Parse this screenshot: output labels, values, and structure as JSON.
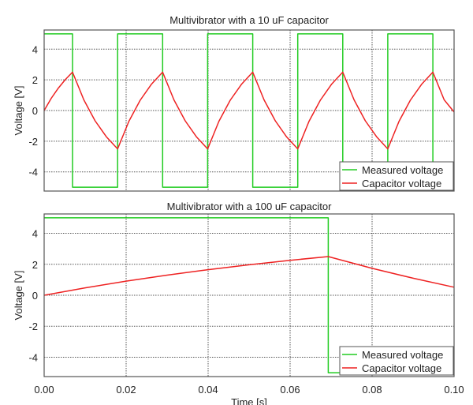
{
  "chart_data": [
    {
      "type": "line",
      "title": "Multivibrator with a 10 uF capacitor",
      "xlabel": "",
      "ylabel": "Voltage [V]",
      "xlim": [
        0,
        0.1
      ],
      "ylim": [
        -5.25,
        5.25
      ],
      "yticks": [
        4,
        2,
        0,
        -2,
        -4
      ],
      "ytick_labels": [
        "4",
        "2",
        "0",
        "-2",
        "-4"
      ],
      "xticks": [
        0,
        0.02,
        0.04,
        0.06,
        0.08,
        0.1
      ],
      "grid": true,
      "legend_position": "bottom-right",
      "series": [
        {
          "name": "Measured voltage",
          "color": "#22cc22",
          "x": [
            0,
            0.00693,
            0.00693,
            0.01792,
            0.01792,
            0.0289,
            0.0289,
            0.03989,
            0.03989,
            0.05088,
            0.05088,
            0.06186,
            0.06186,
            0.07285,
            0.07285,
            0.08383,
            0.08383,
            0.09482,
            0.09482,
            0.1
          ],
          "y": [
            5,
            5,
            -5,
            -5,
            5,
            5,
            -5,
            -5,
            5,
            5,
            -5,
            -5,
            5,
            5,
            -5,
            -5,
            5,
            5,
            -5,
            -5
          ]
        },
        {
          "name": "Capacitor voltage",
          "color": "#ee2222",
          "x": [
            0,
            0.00173,
            0.00347,
            0.0052,
            0.00693,
            0.00968,
            0.01243,
            0.01517,
            0.01792,
            0.02067,
            0.02342,
            0.02616,
            0.0289,
            0.03165,
            0.0344,
            0.03714,
            0.03989,
            0.04264,
            0.04539,
            0.04813,
            0.05088,
            0.05363,
            0.05638,
            0.05912,
            0.06186,
            0.06461,
            0.06736,
            0.0701,
            0.07285,
            0.0756,
            0.07835,
            0.08109,
            0.08383,
            0.08658,
            0.08933,
            0.09207,
            0.09482,
            0.09757,
            0.1
          ],
          "y": [
            0,
            0.8,
            1.46,
            2.03,
            2.5,
            0.7,
            -0.67,
            -1.71,
            -2.5,
            -0.7,
            0.67,
            1.71,
            2.5,
            0.7,
            -0.67,
            -1.71,
            -2.5,
            -0.7,
            0.67,
            1.71,
            2.5,
            0.7,
            -0.67,
            -1.71,
            -2.5,
            -0.7,
            0.67,
            1.71,
            2.5,
            0.7,
            -0.67,
            -1.71,
            -2.5,
            -0.7,
            0.67,
            1.71,
            2.5,
            0.7,
            -0.1
          ]
        }
      ]
    },
    {
      "type": "line",
      "title": "Multivibrator with a 100 uF capacitor",
      "xlabel": "Time [s]",
      "ylabel": "Voltage [V]",
      "xlim": [
        0,
        0.1
      ],
      "ylim": [
        -5.25,
        5.25
      ],
      "yticks": [
        4,
        2,
        0,
        -2,
        -4
      ],
      "ytick_labels": [
        "4",
        "2",
        "0",
        "-2",
        "-4"
      ],
      "xticks": [
        0,
        0.02,
        0.04,
        0.06,
        0.08,
        0.1
      ],
      "xtick_labels": [
        "0.00",
        "0.02",
        "0.04",
        "0.06",
        "0.08",
        "0.10"
      ],
      "grid": true,
      "legend_position": "bottom-right",
      "series": [
        {
          "name": "Measured voltage",
          "color": "#22cc22",
          "x": [
            0,
            0.0693,
            0.0693,
            0.1
          ],
          "y": [
            5,
            5,
            -5,
            -5
          ]
        },
        {
          "name": "Capacitor voltage",
          "color": "#ee2222",
          "x": [
            0,
            0.01,
            0.02,
            0.03,
            0.04,
            0.05,
            0.06,
            0.0693,
            0.08,
            0.09,
            0.1
          ],
          "y": [
            0,
            0.48,
            0.91,
            1.3,
            1.65,
            1.97,
            2.26,
            2.5,
            1.74,
            1.1,
            0.52
          ]
        }
      ]
    }
  ]
}
